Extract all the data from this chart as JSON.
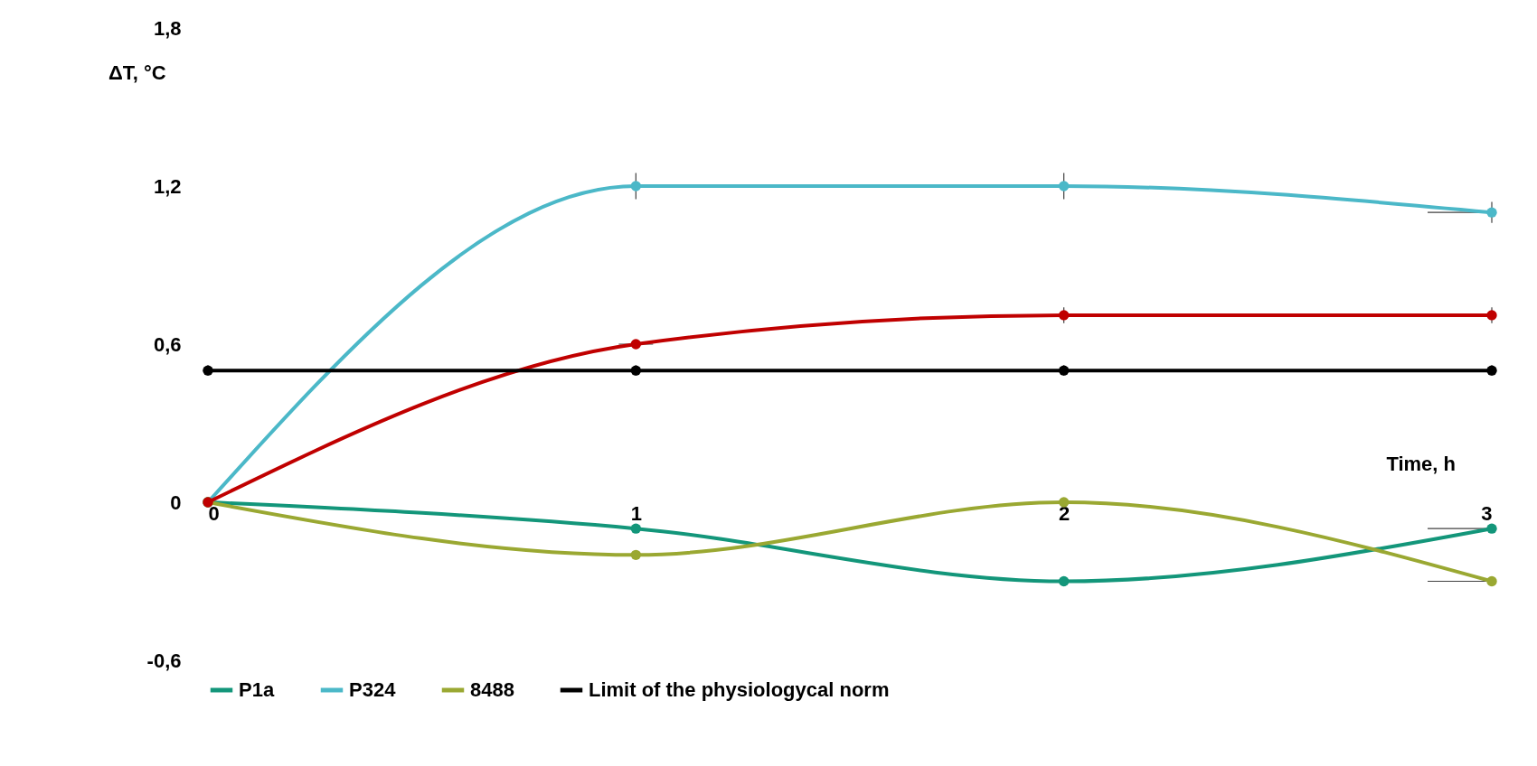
{
  "chart_data": {
    "type": "line",
    "xlabel": "Time, h",
    "ylabel": "ΔT, °C",
    "x": [
      0,
      1,
      2,
      3
    ],
    "xlim": [
      0,
      3
    ],
    "xticks": [
      0,
      1,
      2,
      3
    ],
    "ylim": [
      -0.6,
      1.8
    ],
    "yticks": [
      {
        "value": -0.6,
        "label": "-0,6"
      },
      {
        "value": 0,
        "label": "0"
      },
      {
        "value": 0.6,
        "label": "0,6"
      },
      {
        "value": 1.2,
        "label": "1,2"
      },
      {
        "value": 1.8,
        "label": "1,8"
      }
    ],
    "grid": false,
    "legend": "bottom",
    "marker": "circle",
    "line_style": "solid",
    "series": [
      {
        "name": "P1a",
        "color": "#13967a",
        "values": [
          0,
          -0.1,
          -0.3,
          -0.1
        ],
        "xerrors": [
          null,
          null,
          null,
          [
            2.85,
            3
          ]
        ]
      },
      {
        "name": "P324",
        "color": "#4bb8c8",
        "values": [
          0,
          1.2,
          1.2,
          1.1
        ],
        "errors": [
          null,
          0.05,
          0.05,
          0.04
        ],
        "xerrors": [
          null,
          null,
          null,
          [
            2.85,
            3
          ]
        ]
      },
      {
        "name": "8488",
        "color": "#9aa832",
        "values": [
          0,
          -0.2,
          0,
          -0.3
        ],
        "xerrors": [
          null,
          null,
          null,
          [
            2.85,
            3
          ]
        ]
      },
      {
        "color": "#c00000",
        "values": [
          0,
          0.6,
          0.71,
          0.71
        ],
        "errors": [
          null,
          null,
          0.03,
          0.03
        ],
        "xerrors": [
          null,
          0.04,
          null,
          null
        ]
      },
      {
        "name": "Limit of the physiologycal norm",
        "color": "#000000",
        "values": [
          0.5,
          0.5,
          0.5,
          0.5
        ],
        "errors": [
          0.02,
          0.02,
          0.02,
          0.02
        ],
        "xerrors": [
          null,
          0.04,
          0.07,
          [
            2.85,
            3
          ]
        ]
      }
    ]
  }
}
